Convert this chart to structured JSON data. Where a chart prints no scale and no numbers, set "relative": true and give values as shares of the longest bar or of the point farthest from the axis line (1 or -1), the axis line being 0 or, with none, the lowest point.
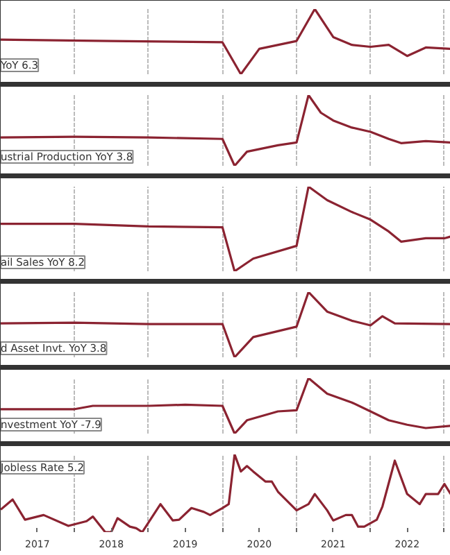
{
  "chart_data": [
    {
      "type": "line",
      "relative": true,
      "annotations": [
        "YoY 6.3"
      ],
      "grid": "x",
      "tick_labels": false,
      "xlim": [
        "2017-01",
        "2023-02"
      ],
      "xticks": [
        {
          "value": "2018-01",
          "label": null
        },
        {
          "value": "2019-01",
          "label": null
        },
        {
          "value": "2020-01",
          "label": null
        },
        {
          "value": "2021-01",
          "label": null
        },
        {
          "value": "2022-01",
          "label": null
        },
        {
          "value": "2023-01",
          "label": null
        }
      ],
      "series": [
        {
          "color": "#8b2331",
          "x": [
            "2017-01",
            "2018-07",
            "2020-01",
            "2020-04",
            "2020-07",
            "2021-01",
            "2021-04",
            "2021-07",
            "2021-10",
            "2022-01",
            "2022-04",
            "2022-07",
            "2022-10",
            "2023-02"
          ],
          "values": [
            0.53,
            0.51,
            0.49,
            0,
            0.39,
            0.51,
            1,
            0.57,
            0.45,
            0.42,
            0.45,
            0.28,
            0.41,
            0.39
          ]
        }
      ]
    },
    {
      "type": "line",
      "relative": true,
      "annotations": [
        "ustrial Production YoY 3.8"
      ],
      "grid": "x",
      "tick_labels": false,
      "xlim": [
        "2017-01",
        "2023-02"
      ],
      "xticks": [
        {
          "value": "2018-01",
          "label": null
        },
        {
          "value": "2019-01",
          "label": null
        },
        {
          "value": "2020-01",
          "label": null
        },
        {
          "value": "2021-01",
          "label": null
        },
        {
          "value": "2022-01",
          "label": null
        },
        {
          "value": "2023-01",
          "label": null
        }
      ],
      "series": [
        {
          "color": "#8b2331",
          "x": [
            "2017-01",
            "2018-01",
            "2019-01",
            "2020-01",
            "2020-03",
            "2020-05",
            "2020-10",
            "2021-01",
            "2021-03",
            "2021-05",
            "2021-07",
            "2021-10",
            "2022-01",
            "2022-04",
            "2022-06",
            "2022-10",
            "2023-02"
          ],
          "values": [
            0.4,
            0.41,
            0.4,
            0.38,
            0,
            0.2,
            0.29,
            0.33,
            1,
            0.75,
            0.64,
            0.54,
            0.48,
            0.38,
            0.32,
            0.35,
            0.33
          ]
        }
      ]
    },
    {
      "type": "line",
      "relative": true,
      "annotations": [
        "ail Sales YoY 8.2"
      ],
      "grid": "x",
      "tick_labels": false,
      "xlim": [
        "2017-01",
        "2023-02"
      ],
      "xticks": [
        {
          "value": "2018-01",
          "label": null
        },
        {
          "value": "2019-01",
          "label": null
        },
        {
          "value": "2020-01",
          "label": null
        },
        {
          "value": "2021-01",
          "label": null
        },
        {
          "value": "2022-01",
          "label": null
        },
        {
          "value": "2023-01",
          "label": null
        }
      ],
      "series": [
        {
          "color": "#8b2331",
          "x": [
            "2017-01",
            "2018-01",
            "2019-01",
            "2020-01",
            "2020-03",
            "2020-06",
            "2021-01",
            "2021-03",
            "2021-06",
            "2021-10",
            "2022-01",
            "2022-04",
            "2022-06",
            "2022-10",
            "2023-01",
            "2023-02"
          ],
          "values": [
            0.56,
            0.56,
            0.53,
            0.52,
            0,
            0.15,
            0.3,
            1,
            0.84,
            0.7,
            0.61,
            0.47,
            0.35,
            0.39,
            0.39,
            0.41
          ]
        }
      ]
    },
    {
      "type": "line",
      "relative": true,
      "annotations": [
        "d Asset Invt. YoY 3.8"
      ],
      "grid": "x",
      "tick_labels": false,
      "xlim": [
        "2017-01",
        "2023-02"
      ],
      "xticks": [
        {
          "value": "2018-01",
          "label": null
        },
        {
          "value": "2019-01",
          "label": null
        },
        {
          "value": "2020-01",
          "label": null
        },
        {
          "value": "2021-01",
          "label": null
        },
        {
          "value": "2022-01",
          "label": null
        },
        {
          "value": "2023-01",
          "label": null
        }
      ],
      "series": [
        {
          "color": "#8b2331",
          "x": [
            "2017-01",
            "2018-01",
            "2019-01",
            "2020-01",
            "2020-03",
            "2020-06",
            "2021-01",
            "2021-03",
            "2021-06",
            "2021-10",
            "2022-01",
            "2022-03",
            "2022-05",
            "2023-02"
          ],
          "values": [
            0.52,
            0.53,
            0.51,
            0.51,
            0,
            0.31,
            0.47,
            1,
            0.7,
            0.56,
            0.49,
            0.63,
            0.52,
            0.51
          ]
        }
      ]
    },
    {
      "type": "line",
      "relative": true,
      "annotations": [
        "nvestment YoY -7.9"
      ],
      "grid": "x",
      "tick_labels": false,
      "xlim": [
        "2017-01",
        "2023-02"
      ],
      "xticks": [
        {
          "value": "2018-01",
          "label": null
        },
        {
          "value": "2019-01",
          "label": null
        },
        {
          "value": "2020-01",
          "label": null
        },
        {
          "value": "2021-01",
          "label": null
        },
        {
          "value": "2022-01",
          "label": null
        },
        {
          "value": "2023-01",
          "label": null
        }
      ],
      "series": [
        {
          "color": "#8b2331",
          "x": [
            "2017-01",
            "2018-01",
            "2018-04",
            "2019-01",
            "2019-07",
            "2020-01",
            "2020-03",
            "2020-05",
            "2020-10",
            "2021-01",
            "2021-03",
            "2021-06",
            "2021-10",
            "2022-01",
            "2022-04",
            "2022-07",
            "2022-10",
            "2023-02"
          ],
          "values": [
            0.44,
            0.44,
            0.5,
            0.5,
            0.52,
            0.5,
            0,
            0.24,
            0.4,
            0.42,
            1,
            0.72,
            0.56,
            0.4,
            0.24,
            0.16,
            0.1,
            0.14
          ]
        }
      ]
    },
    {
      "type": "line",
      "relative": true,
      "annotations": [
        "Jobless Rate 5.2"
      ],
      "grid": "x",
      "tick_labels": "x",
      "xlim": [
        "2017-01",
        "2023-02"
      ],
      "xticks": [
        {
          "value": "2017-07",
          "label": "2017"
        },
        {
          "value": "2018-01",
          "label": null
        },
        {
          "value": "2018-07",
          "label": "2018"
        },
        {
          "value": "2019-01",
          "label": null
        },
        {
          "value": "2019-07",
          "label": "2019"
        },
        {
          "value": "2020-01",
          "label": null
        },
        {
          "value": "2020-07",
          "label": "2020"
        },
        {
          "value": "2021-01",
          "label": null
        },
        {
          "value": "2021-07",
          "label": "2021"
        },
        {
          "value": "2022-01",
          "label": null
        },
        {
          "value": "2022-07",
          "label": "2022"
        },
        {
          "value": "2023-01",
          "label": null
        }
      ],
      "series": [
        {
          "color": "#8b2331",
          "x": [
            "2017-01",
            "2017-03",
            "2017-05",
            "2017-08",
            "2017-12",
            "2018-03",
            "2018-04",
            "2018-06",
            "2018-07",
            "2018-08",
            "2018-10",
            "2018-11",
            "2018-12",
            "2019-03",
            "2019-05",
            "2019-06",
            "2019-08",
            "2019-10",
            "2019-11",
            "2020-01",
            "2020-02",
            "2020-03",
            "2020-04",
            "2020-05",
            "2020-06",
            "2020-08",
            "2020-09",
            "2020-10",
            "2020-12",
            "2021-01",
            "2021-03",
            "2021-04",
            "2021-06",
            "2021-07",
            "2021-09",
            "2021-10",
            "2021-11",
            "2021-12",
            "2022-02",
            "2022-03",
            "2022-05",
            "2022-07",
            "2022-09",
            "2022-10",
            "2022-12",
            "2023-01",
            "2023-02"
          ],
          "values": [
            0.29,
            0.42,
            0.16,
            0.22,
            0.08,
            0.14,
            0.2,
            0,
            0,
            0.18,
            0.07,
            0.05,
            0,
            0.36,
            0.15,
            0.16,
            0.31,
            0.26,
            0.22,
            0.31,
            0.36,
            1,
            0.78,
            0.85,
            0.78,
            0.65,
            0.65,
            0.52,
            0.36,
            0.28,
            0.36,
            0.49,
            0.28,
            0.15,
            0.22,
            0.22,
            0.07,
            0.07,
            0.16,
            0.33,
            0.92,
            0.49,
            0.36,
            0.49,
            0.49,
            0.62,
            0.49
          ]
        }
      ]
    }
  ]
}
